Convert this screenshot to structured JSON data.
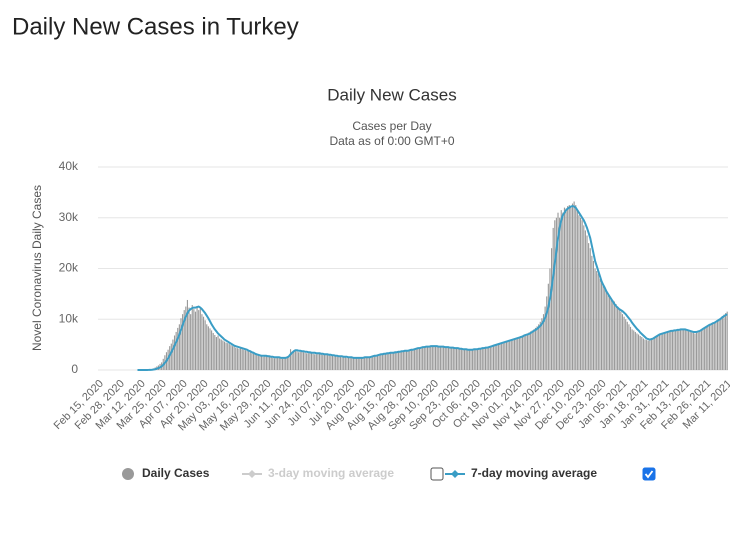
{
  "page_title": "Daily New Cases in Turkey",
  "chart_data": {
    "type": "bar-line",
    "title": "Daily New Cases",
    "subtitle": "Cases per Day",
    "note": "Data as of 0:00 GMT+0",
    "ylabel": "Novel Coronavirus Daily Cases",
    "ylim": [
      0,
      40000
    ],
    "yticks": [
      0,
      {
        "value": 10000,
        "label": "10k"
      },
      {
        "value": 20000,
        "label": "20k"
      },
      {
        "value": 30000,
        "label": "30k"
      },
      {
        "value": 40000,
        "label": "40k"
      }
    ],
    "grid": true,
    "categories": [
      "Feb 15, 2020",
      null,
      null,
      null,
      null,
      null,
      null,
      null,
      null,
      null,
      null,
      null,
      null,
      "Feb 28, 2020",
      null,
      null,
      null,
      null,
      null,
      null,
      null,
      null,
      null,
      null,
      null,
      null,
      "Mar 12, 2020",
      null,
      null,
      null,
      null,
      null,
      null,
      null,
      null,
      null,
      null,
      null,
      null,
      "Mar 25, 2020",
      null,
      null,
      null,
      null,
      null,
      null,
      null,
      null,
      null,
      null,
      null,
      null,
      "Apr 07, 2020",
      null,
      null,
      null,
      null,
      null,
      null,
      null,
      null,
      null,
      null,
      null,
      null,
      "Apr 20, 2020",
      null,
      null,
      null,
      null,
      null,
      null,
      null,
      null,
      null,
      null,
      null,
      null,
      "May 03, 2020",
      null,
      null,
      null,
      null,
      null,
      null,
      null,
      null,
      null,
      null,
      null,
      null,
      "May 16, 2020",
      null,
      null,
      null,
      null,
      null,
      null,
      null,
      null,
      null,
      null,
      null,
      null,
      "May 29, 2020",
      null,
      null,
      null,
      null,
      null,
      null,
      null,
      null,
      null,
      null,
      null,
      null,
      "Jun 11, 2020",
      null,
      null,
      null,
      null,
      null,
      null,
      null,
      null,
      null,
      null,
      null,
      null,
      "Jun 24, 2020",
      null,
      null,
      null,
      null,
      null,
      null,
      null,
      null,
      null,
      null,
      null,
      null,
      "Jul 07, 2020",
      null,
      null,
      null,
      null,
      null,
      null,
      null,
      null,
      null,
      null,
      null,
      null,
      "Jul 20, 2020",
      null,
      null,
      null,
      null,
      null,
      null,
      null,
      null,
      null,
      null,
      null,
      null,
      "Aug 02, 2020",
      null,
      null,
      null,
      null,
      null,
      null,
      null,
      null,
      null,
      null,
      null,
      null,
      "Aug 15, 2020",
      null,
      null,
      null,
      null,
      null,
      null,
      null,
      null,
      null,
      null,
      null,
      null,
      "Aug 28, 2020",
      null,
      null,
      null,
      null,
      null,
      null,
      null,
      null,
      null,
      null,
      null,
      null,
      "Sep 10, 2020",
      null,
      null,
      null,
      null,
      null,
      null,
      null,
      null,
      null,
      null,
      null,
      null,
      "Sep 23, 2020",
      null,
      null,
      null,
      null,
      null,
      null,
      null,
      null,
      null,
      null,
      null,
      null,
      "Oct 06, 2020",
      null,
      null,
      null,
      null,
      null,
      null,
      null,
      null,
      null,
      null,
      null,
      null,
      "Oct 19, 2020",
      null,
      null,
      null,
      null,
      null,
      null,
      null,
      null,
      null,
      null,
      null,
      null,
      "Nov 01, 2020",
      null,
      null,
      null,
      null,
      null,
      null,
      null,
      null,
      null,
      null,
      null,
      null,
      "Nov 14, 2020",
      null,
      null,
      null,
      null,
      null,
      null,
      null,
      null,
      null,
      null,
      null,
      null,
      "Nov 27, 2020",
      null,
      null,
      null,
      null,
      null,
      null,
      null,
      null,
      null,
      null,
      null,
      null,
      "Dec 10, 2020",
      null,
      null,
      null,
      null,
      null,
      null,
      null,
      null,
      null,
      null,
      null,
      null,
      "Dec 23, 2020",
      null,
      null,
      null,
      null,
      null,
      null,
      null,
      null,
      null,
      null,
      null,
      null,
      "Jan 05, 2021",
      null,
      null,
      null,
      null,
      null,
      null,
      null,
      null,
      null,
      null,
      null,
      null,
      "Jan 18, 2021",
      null,
      null,
      null,
      null,
      null,
      null,
      null,
      null,
      null,
      null,
      null,
      null,
      "Jan 31, 2021",
      null,
      null,
      null,
      null,
      null,
      null,
      null,
      null,
      null,
      null,
      null,
      null,
      "Feb 13, 2021",
      null,
      null,
      null,
      null,
      null,
      null,
      null,
      null,
      null,
      null,
      null,
      null,
      "Feb 26, 2021",
      null,
      null,
      null,
      null,
      null,
      null,
      null,
      null,
      null,
      null,
      null,
      null,
      "Mar 11, 2021"
    ],
    "series": [
      {
        "name": "Daily Cases",
        "kind": "bar",
        "color": "#999999",
        "values": [
          0,
          0,
          0,
          0,
          0,
          0,
          0,
          0,
          0,
          0,
          0,
          0,
          0,
          0,
          0,
          0,
          0,
          0,
          0,
          0,
          0,
          0,
          0,
          0,
          0,
          1,
          0,
          4,
          0,
          12,
          29,
          51,
          93,
          168,
          311,
          500,
          700,
          900,
          1200,
          1500,
          2200,
          2900,
          3500,
          4000,
          4700,
          5200,
          6000,
          6800,
          7500,
          8300,
          9000,
          10200,
          11000,
          11800,
          12500,
          13800,
          12300,
          11000,
          12800,
          12000,
          11500,
          12600,
          11800,
          12200,
          11000,
          10500,
          9800,
          9000,
          8600,
          8200,
          7800,
          7300,
          6900,
          6500,
          6800,
          6200,
          6000,
          5800,
          5600,
          5400,
          5300,
          5100,
          4900,
          4700,
          4600,
          4400,
          4300,
          4200,
          4500,
          4100,
          4000,
          3900,
          3800,
          3700,
          3500,
          3300,
          3200,
          3100,
          3000,
          2900,
          2800,
          2700,
          2600,
          2700,
          2800,
          2900,
          2700,
          2500,
          2400,
          2300,
          2600,
          2500,
          2400,
          2300,
          2200,
          2300,
          2400,
          2500,
          2700,
          4100,
          3600,
          3800,
          3900,
          3700,
          3500,
          3600,
          3700,
          3500,
          3400,
          3300,
          3300,
          3400,
          3300,
          3200,
          3100,
          3100,
          3300,
          3200,
          3100,
          3000,
          3000,
          3100,
          3000,
          2900,
          2800,
          2800,
          2700,
          2700,
          2600,
          2600,
          2600,
          2500,
          2500,
          2500,
          2400,
          2400,
          2400,
          2400,
          2300,
          2300,
          2300,
          2300,
          2400,
          2400,
          2400,
          2500,
          2500,
          2500,
          2600,
          2600,
          2700,
          2800,
          2900,
          3000,
          3100,
          3100,
          3200,
          3200,
          3300,
          3300,
          3300,
          3400,
          3400,
          3500,
          3500,
          3500,
          3600,
          3600,
          3700,
          3700,
          3800,
          3800,
          3900,
          3900,
          4000,
          4100,
          4200,
          4300,
          4300,
          4400,
          4500,
          4500,
          4600,
          4600,
          4700,
          4700,
          4700,
          4700,
          4700,
          4700,
          4600,
          4600,
          4600,
          4600,
          4500,
          4500,
          4500,
          4400,
          4400,
          4400,
          4300,
          4300,
          4300,
          4200,
          4200,
          4100,
          4100,
          4000,
          4000,
          4000,
          4000,
          4100,
          4100,
          4100,
          4100,
          4200,
          4200,
          4300,
          4300,
          4400,
          4500,
          4500,
          4600,
          4700,
          4800,
          4900,
          5000,
          5100,
          5200,
          5300,
          5400,
          5500,
          5600,
          5700,
          5800,
          5900,
          6000,
          6100,
          6200,
          6300,
          6400,
          6500,
          6700,
          6800,
          6900,
          7000,
          7200,
          7400,
          7600,
          7800,
          8000,
          8300,
          8600,
          9000,
          9500,
          10200,
          11000,
          12500,
          14500,
          17000,
          20000,
          24000,
          28000,
          29500,
          30000,
          31000,
          30000,
          31500,
          31000,
          32000,
          31800,
          32300,
          32500,
          32000,
          32800,
          33200,
          32500,
          31500,
          30500,
          30000,
          29500,
          28500,
          27500,
          26500,
          25000,
          24000,
          22500,
          21500,
          20000,
          19500,
          19000,
          18000,
          17500,
          17000,
          16000,
          15500,
          15000,
          14500,
          14000,
          13800,
          13500,
          13000,
          12500,
          12000,
          11500,
          11000,
          10500,
          10000,
          9500,
          9000,
          8500,
          8000,
          7800,
          7500,
          7200,
          7000,
          6700,
          6500,
          6200,
          6000,
          5900,
          5800,
          6000,
          6100,
          6300,
          6500,
          6700,
          6900,
          7000,
          7200,
          7300,
          7400,
          7500,
          7500,
          7600,
          7700,
          7800,
          7800,
          7900,
          7900,
          8000,
          8000,
          8100,
          8100,
          8000,
          7800,
          7600,
          7500,
          7400,
          7300,
          7200,
          7300,
          7400,
          7600,
          7800,
          8000,
          8200,
          8400,
          8600,
          8800,
          9000,
          9200,
          9400,
          9600,
          9800,
          10000,
          10300,
          10600,
          10900,
          11200,
          11500
        ]
      },
      {
        "name": "3-day moving average",
        "kind": "hidden",
        "color": "#cccccc"
      },
      {
        "name": "7-day moving average",
        "kind": "line",
        "color": "#3a9dc5",
        "values": [
          null,
          null,
          null,
          null,
          null,
          null,
          null,
          null,
          null,
          null,
          null,
          null,
          null,
          null,
          null,
          null,
          null,
          null,
          null,
          null,
          null,
          null,
          null,
          null,
          0,
          0,
          0,
          1,
          1,
          3,
          7,
          14,
          27,
          51,
          94,
          150,
          250,
          380,
          520,
          720,
          1000,
          1400,
          1800,
          2300,
          2900,
          3500,
          4100,
          4800,
          5500,
          6200,
          7000,
          7900,
          8800,
          9700,
          10500,
          11200,
          11700,
          12000,
          12200,
          12300,
          12300,
          12400,
          12500,
          12300,
          12000,
          11600,
          11200,
          10700,
          10200,
          9600,
          9000,
          8500,
          8000,
          7600,
          7200,
          6900,
          6600,
          6300,
          6000,
          5800,
          5600,
          5400,
          5200,
          5000,
          4800,
          4700,
          4600,
          4500,
          4400,
          4300,
          4200,
          4100,
          4000,
          3800,
          3700,
          3500,
          3400,
          3200,
          3100,
          3000,
          2900,
          2800,
          2800,
          2800,
          2800,
          2700,
          2700,
          2600,
          2600,
          2500,
          2500,
          2500,
          2500,
          2400,
          2400,
          2400,
          2400,
          2500,
          2700,
          3100,
          3400,
          3700,
          3900,
          3900,
          3800,
          3800,
          3700,
          3700,
          3600,
          3600,
          3500,
          3500,
          3400,
          3400,
          3400,
          3300,
          3300,
          3300,
          3200,
          3200,
          3100,
          3100,
          3100,
          3000,
          3000,
          2900,
          2900,
          2800,
          2800,
          2700,
          2700,
          2700,
          2600,
          2600,
          2600,
          2500,
          2500,
          2500,
          2400,
          2400,
          2400,
          2400,
          2400,
          2400,
          2400,
          2500,
          2500,
          2500,
          2500,
          2600,
          2700,
          2800,
          2800,
          2900,
          3000,
          3100,
          3100,
          3200,
          3200,
          3300,
          3300,
          3400,
          3400,
          3400,
          3500,
          3500,
          3600,
          3600,
          3700,
          3700,
          3800,
          3800,
          3800,
          3900,
          4000,
          4000,
          4100,
          4200,
          4300,
          4300,
          4400,
          4500,
          4500,
          4600,
          4600,
          4600,
          4700,
          4700,
          4700,
          4700,
          4700,
          4600,
          4600,
          4600,
          4600,
          4500,
          4500,
          4500,
          4400,
          4400,
          4400,
          4300,
          4300,
          4300,
          4200,
          4200,
          4100,
          4100,
          4100,
          4000,
          4000,
          4000,
          4000,
          4100,
          4100,
          4100,
          4200,
          4200,
          4300,
          4300,
          4400,
          4400,
          4500,
          4600,
          4700,
          4800,
          4900,
          5000,
          5100,
          5200,
          5300,
          5400,
          5500,
          5600,
          5700,
          5800,
          5900,
          6000,
          6100,
          6200,
          6300,
          6400,
          6500,
          6600,
          6800,
          6900,
          7000,
          7100,
          7300,
          7500,
          7700,
          7900,
          8100,
          8400,
          8700,
          9100,
          9600,
          10300,
          11200,
          12400,
          14000,
          16000,
          18500,
          21000,
          23500,
          26000,
          28000,
          29500,
          30500,
          31000,
          31500,
          31800,
          32000,
          32200,
          32300,
          32200,
          32000,
          31500,
          31000,
          30500,
          30000,
          29500,
          28800,
          28000,
          27000,
          26000,
          24500,
          23000,
          21500,
          20500,
          19500,
          18500,
          17500,
          16800,
          16200,
          15500,
          15000,
          14500,
          14000,
          13500,
          13000,
          12600,
          12300,
          12000,
          11800,
          11600,
          11300,
          11000,
          10600,
          10200,
          9800,
          9300,
          8900,
          8500,
          8100,
          7800,
          7400,
          7100,
          6800,
          6500,
          6200,
          6100,
          6000,
          6100,
          6200,
          6400,
          6600,
          6800,
          7000,
          7100,
          7200,
          7300,
          7400,
          7500,
          7600,
          7700,
          7700,
          7800,
          7800,
          7900,
          7900,
          8000,
          8000,
          8000,
          8000,
          7900,
          7800,
          7700,
          7600,
          7500,
          7500,
          7500,
          7600,
          7700,
          7900,
          8100,
          8300,
          8500,
          8700,
          8900,
          9000,
          9200,
          9300,
          9500,
          9700,
          9900,
          10100,
          10400,
          10600,
          10800,
          11000
        ]
      }
    ]
  }
}
